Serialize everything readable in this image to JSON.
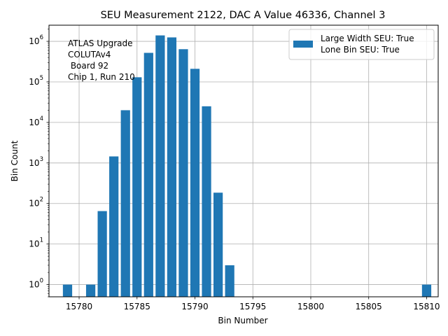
{
  "chart_data": {
    "type": "bar",
    "title": "SEU Measurement 2122, DAC A Value 46336, Channel 3",
    "xlabel": "Bin Number",
    "ylabel": "Bin Count",
    "yscale": "log",
    "xlim": [
      15777.4,
      15811.0
    ],
    "ylim": [
      0.5,
      2500000
    ],
    "grid": true,
    "bar_color": "#1f77b4",
    "bar_width": 0.8,
    "bins": [
      15779,
      15781,
      15782,
      15783,
      15784,
      15785,
      15786,
      15787,
      15788,
      15789,
      15790,
      15791,
      15792,
      15793,
      15810
    ],
    "counts": [
      1,
      1,
      65,
      1450,
      20000,
      130000,
      520000,
      1400000,
      1250000,
      640000,
      210000,
      25000,
      185,
      3,
      1
    ],
    "x_ticks": [
      {
        "value": 15780,
        "label": "15780"
      },
      {
        "value": 15785,
        "label": "15785"
      },
      {
        "value": 15790,
        "label": "15790"
      },
      {
        "value": 15795,
        "label": "15795"
      },
      {
        "value": 15800,
        "label": "15800"
      },
      {
        "value": 15805,
        "label": "15805"
      },
      {
        "value": 15810,
        "label": "15810"
      }
    ],
    "y_ticks": [
      {
        "value": 1,
        "base": "10",
        "exp": "0"
      },
      {
        "value": 10,
        "base": "10",
        "exp": "1"
      },
      {
        "value": 100,
        "base": "10",
        "exp": "2"
      },
      {
        "value": 1000,
        "base": "10",
        "exp": "3"
      },
      {
        "value": 10000,
        "base": "10",
        "exp": "4"
      },
      {
        "value": 100000,
        "base": "10",
        "exp": "5"
      },
      {
        "value": 1000000,
        "base": "10",
        "exp": "6"
      }
    ],
    "legend": {
      "position": "top-right",
      "lines": [
        "Large Width SEU: True",
        "Lone Bin SEU: True"
      ]
    },
    "annotation_lines": [
      "ATLAS Upgrade",
      "COLUTAv4",
      " Board 92",
      "Chip 1, Run 210"
    ]
  }
}
